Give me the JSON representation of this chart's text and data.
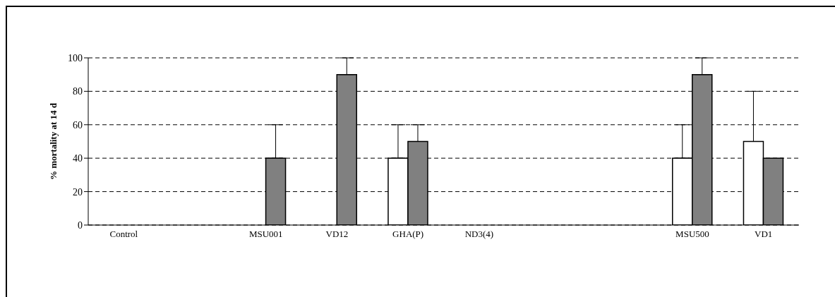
{
  "chart_data": {
    "type": "bar",
    "ylabel": "% mortality at 14 d",
    "categories": [
      "Control",
      null,
      "MSU001",
      "VD12",
      "GHA(P)",
      "ND3(4)",
      null,
      null,
      "MSU500",
      "VD1"
    ],
    "series": [
      {
        "color": "#ffffff",
        "values": [
          0,
          0,
          0,
          0,
          40,
          0,
          0,
          0,
          40,
          50
        ],
        "errors": [
          null,
          null,
          null,
          null,
          [
            40,
            60
          ],
          null,
          null,
          null,
          [
            40,
            60
          ],
          [
            50,
            80
          ]
        ]
      },
      {
        "color": "#808080",
        "values": [
          0,
          0,
          40,
          90,
          50,
          0,
          0,
          0,
          90,
          40
        ],
        "errors": [
          null,
          null,
          [
            40,
            60
          ],
          [
            90,
            100
          ],
          [
            50,
            60
          ],
          null,
          null,
          null,
          [
            90,
            100
          ],
          null
        ]
      }
    ],
    "ylim": [
      0,
      100
    ],
    "yticks": [
      0,
      20,
      40,
      60,
      80,
      100
    ],
    "grid": "y"
  }
}
